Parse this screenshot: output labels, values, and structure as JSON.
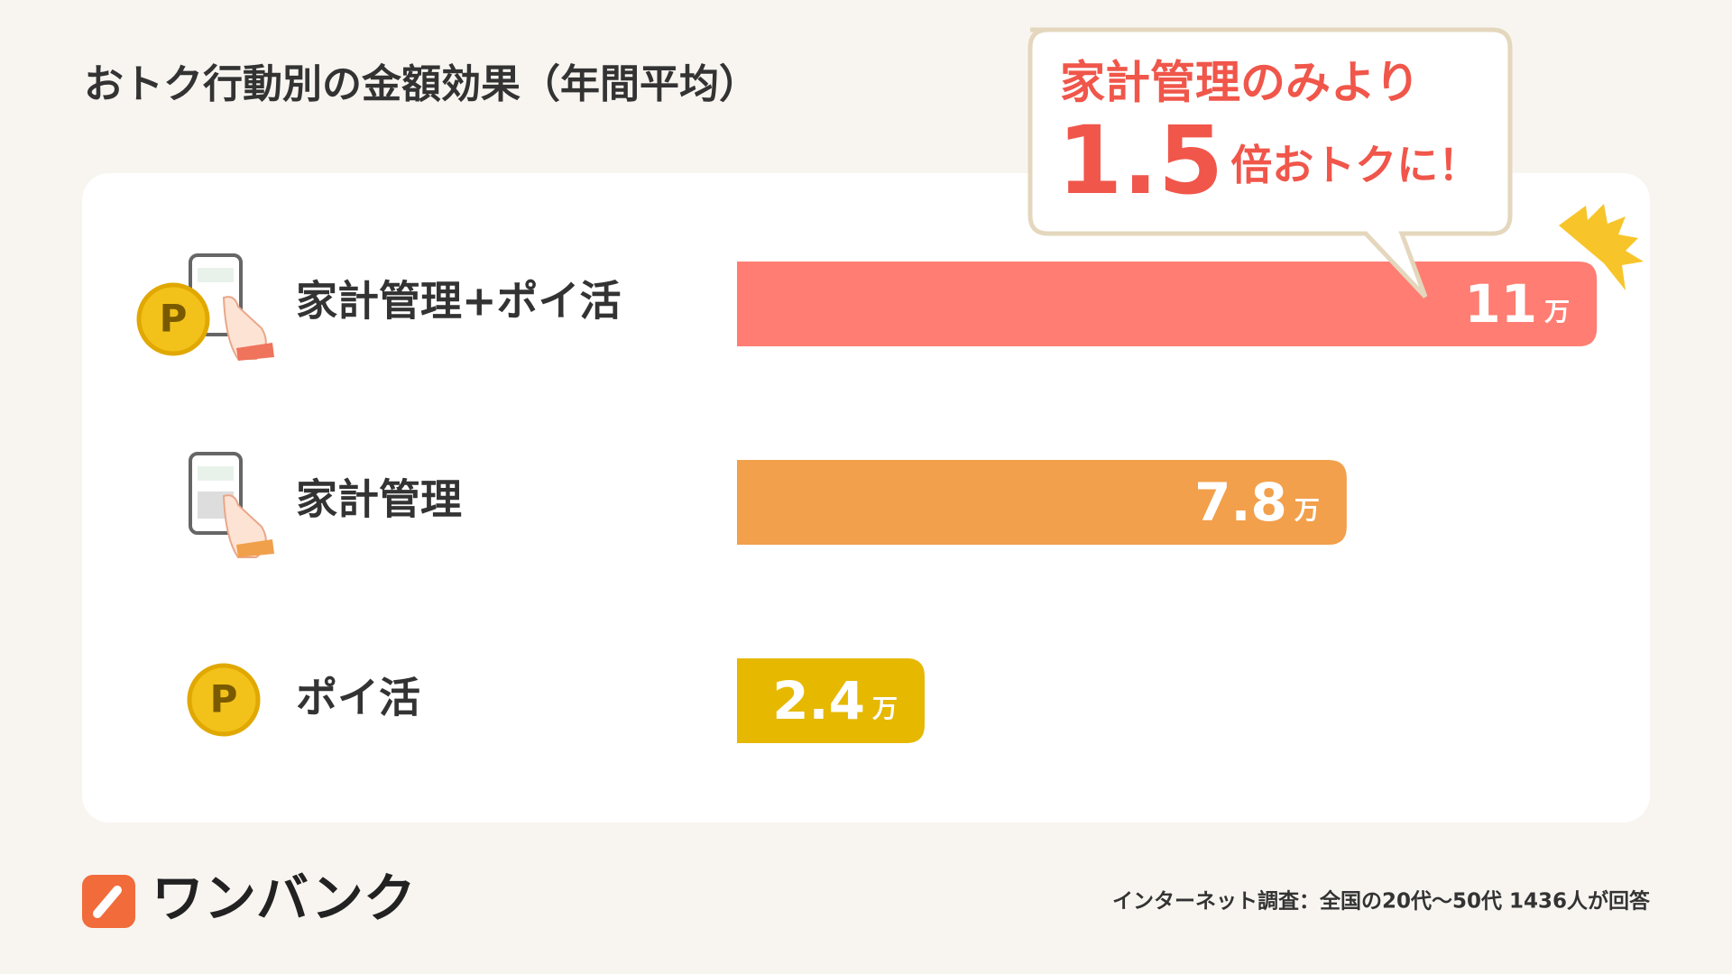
{
  "chart_data": {
    "type": "bar",
    "orientation": "horizontal",
    "title": "おトク行動別の金額効果（年間平均）",
    "categories": [
      "家計管理+ポイ活",
      "家計管理",
      "ポイ活"
    ],
    "values": [
      11,
      7.8,
      2.4
    ],
    "unit": "万",
    "colors": [
      "#ff7d72",
      "#f2a04b",
      "#e6b800"
    ],
    "callout": {
      "line1": "家計管理のみより",
      "ratio": "1.5",
      "suffix": "倍おトクに！"
    }
  },
  "footer": {
    "logo": "ワンバンク",
    "note": "インターネット調査：全国の20代〜50代 1436人が回答"
  }
}
